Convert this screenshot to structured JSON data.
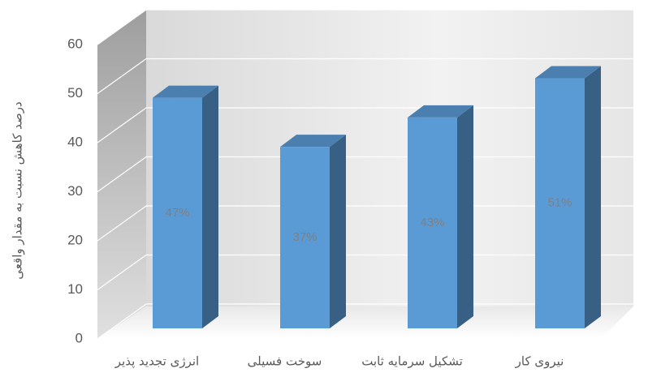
{
  "chart_data": {
    "type": "bar3d",
    "y_label": "درصد کاهش نسبت به مقدار واقعی",
    "categories": [
      "انرژی تجدید پذیر",
      "سوخت فسیلی",
      "تشکیل سرمایه ثابت",
      "نیروی کار"
    ],
    "values": [
      47,
      37,
      43,
      51
    ],
    "value_labels": [
      "47%",
      "37%",
      "43%",
      "51%"
    ],
    "color": "#5b9bd5",
    "ylim": [
      0,
      60
    ],
    "yticks": [
      0,
      10,
      20,
      30,
      40,
      50,
      60
    ],
    "grid": true
  }
}
